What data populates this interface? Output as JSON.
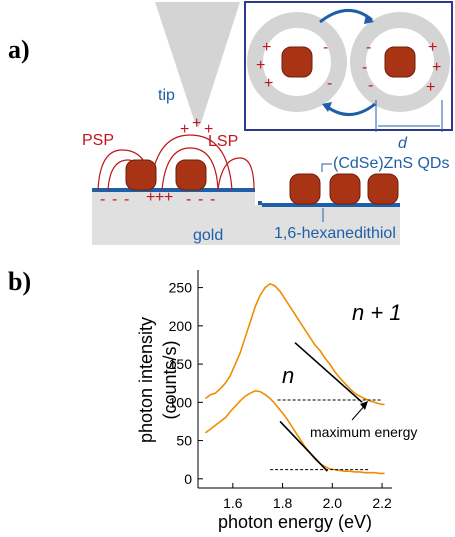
{
  "panel_a": {
    "label": "a)",
    "tip": "tip",
    "psp": "PSP",
    "lsp": "LSP",
    "qds": "(CdSe)ZnS QDs",
    "gold": "gold",
    "linker": "1,6-hexanedithiol",
    "distance": "d",
    "symbols": {
      "plus": "+",
      "minus": "-"
    }
  },
  "chart_data": {
    "type": "line",
    "panel_label": "b)",
    "y_label": [
      "photon intensity",
      "(counts/s)"
    ],
    "x_label": "photon energy (eV)",
    "x": [
      1.49,
      1.51,
      1.53,
      1.55,
      1.57,
      1.59,
      1.61,
      1.63,
      1.65,
      1.67,
      1.69,
      1.71,
      1.73,
      1.75,
      1.77,
      1.79,
      1.81,
      1.83,
      1.85,
      1.87,
      1.89,
      1.91,
      1.93,
      1.95,
      1.97,
      1.99,
      2.01,
      2.03,
      2.05,
      2.07,
      2.09,
      2.11,
      2.13,
      2.15,
      2.17,
      2.19,
      2.21
    ],
    "series": [
      {
        "name": "n + 1",
        "color": "#f08c00",
        "values": [
          105,
          110,
          112,
          118,
          125,
          135,
          150,
          165,
          185,
          205,
          225,
          240,
          250,
          255,
          252,
          245,
          235,
          225,
          215,
          205,
          195,
          185,
          175,
          168,
          158,
          150,
          140,
          132,
          125,
          118,
          112,
          108,
          105,
          102,
          100,
          98,
          97
        ]
      },
      {
        "name": "n",
        "color": "#f08c00",
        "values": [
          60,
          65,
          70,
          75,
          80,
          88,
          95,
          102,
          108,
          112,
          115,
          114,
          110,
          105,
          98,
          90,
          82,
          72,
          62,
          52,
          42,
          34,
          26,
          20,
          16,
          13,
          12,
          11,
          10,
          10,
          9,
          9,
          8,
          8,
          8,
          7,
          7
        ]
      }
    ],
    "fits": [
      {
        "x": [
          1.85,
          2.12
        ],
        "values": [
          178,
          100
        ]
      },
      {
        "x": [
          1.79,
          1.98
        ],
        "values": [
          75,
          10
        ]
      }
    ],
    "baselines": [
      {
        "x": [
          1.78,
          2.2
        ],
        "value": 103
      },
      {
        "x": [
          1.75,
          2.15
        ],
        "value": 12
      }
    ],
    "annotation": "maximum energy",
    "xlim": [
      1.46,
      2.24
    ],
    "ylim": [
      -12,
      273
    ],
    "xticks": [
      1.6,
      1.8,
      {
        "value": 2,
        "label": "2.0"
      },
      2.2
    ],
    "yticks": [
      0,
      50,
      100,
      150,
      200,
      250
    ]
  }
}
